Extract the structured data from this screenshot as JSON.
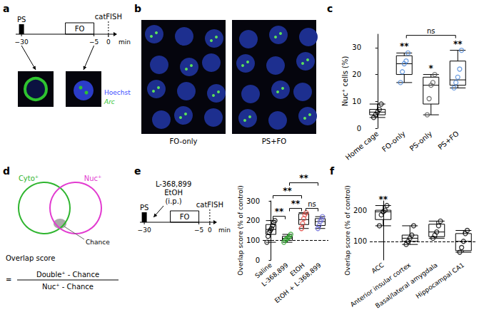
{
  "panels": {
    "a": {
      "label": "a",
      "timeline": {
        "ticks": [
          {
            "value": -30,
            "label": "−30"
          },
          {
            "value": -5,
            "label": "−5"
          },
          0
        ],
        "unit": "min",
        "marker": {
          "t": 0,
          "text": "catFISH"
        },
        "stimulus": {
          "t": -30,
          "text": "PS"
        },
        "session": {
          "t": -5,
          "text": "FO"
        }
      },
      "stains": [
        {
          "text": "Hoechst",
          "color": "#3b4bff"
        },
        {
          "text": "Arc",
          "color": "#2fc42f"
        }
      ]
    },
    "b": {
      "label": "b",
      "captions": [
        "FO-only",
        "PS+FO"
      ]
    },
    "d": {
      "label": "d",
      "sets": [
        {
          "text": "Cyto⁺",
          "color": "#2fb52f"
        },
        {
          "text": "Nuc⁺",
          "color": "#e23bd0"
        }
      ],
      "intersection": "Chance",
      "formula": {
        "lhs": "Overlap score",
        "equals": "=",
        "numerator": "Double⁺ - Chance",
        "denominator": "Nuc⁺ - Chance"
      }
    }
  },
  "chart_data": [
    {
      "panel": "c",
      "type": "boxplot",
      "ylabel": "Nuc⁺ cells (%)",
      "categories": [
        "Home cage",
        "FO-only",
        "PS-only",
        "PS+FO"
      ],
      "boxes": [
        [
          4,
          5,
          6,
          7,
          9
        ],
        [
          17,
          20,
          24,
          27,
          28
        ],
        [
          5,
          9,
          16,
          19,
          20
        ],
        [
          15,
          16,
          18,
          25,
          29
        ]
      ],
      "points": [
        [
          4,
          5,
          6,
          7,
          9
        ],
        [
          17,
          21,
          24,
          25,
          28
        ],
        [
          5,
          11,
          16,
          17,
          20
        ],
        [
          15,
          17,
          19,
          22,
          29
        ]
      ],
      "colors": [
        "#000000",
        "#4a86d8",
        "#555555",
        "#4a86d8"
      ],
      "ylim": [
        0,
        35
      ],
      "yticks": [
        0,
        10,
        20,
        30
      ],
      "grid": false,
      "annotations": [
        {
          "category": "FO-only",
          "text": "**"
        },
        {
          "category": "PS-only",
          "text": "*"
        },
        {
          "category": "PS+FO",
          "text": "**"
        }
      ],
      "comparisons": [
        {
          "pair": [
            "FO-only",
            "PS+FO"
          ],
          "text": "ns"
        }
      ]
    },
    {
      "panel": "e",
      "type": "boxplot",
      "ylabel": "Overlap score (% of control)",
      "timeline": {
        "ticks": [
          {
            "value": -30,
            "label": "−30"
          },
          {
            "value": -5,
            "label": "−5"
          },
          0
        ],
        "unit": "min",
        "marker": {
          "t": 0,
          "text": "catFISH"
        },
        "stimulus": {
          "t": -30,
          "text": "PS"
        },
        "session": {
          "t": -5,
          "text": "FO"
        },
        "injection": [
          "L-368,899",
          "EtOH",
          "(i.p.)"
        ]
      },
      "categories": [
        "Saline",
        "L-368,899",
        "EtOH",
        "EtOH + L-368,899"
      ],
      "boxes": [
        [
          90,
          130,
          155,
          180,
          200
        ],
        [
          90,
          100,
          110,
          120,
          130
        ],
        [
          160,
          180,
          205,
          235,
          240
        ],
        [
          160,
          175,
          195,
          210,
          220
        ]
      ],
      "points": [
        [
          90,
          120,
          140,
          150,
          160,
          175,
          190,
          200
        ],
        [
          90,
          100,
          105,
          110,
          115,
          120,
          130
        ],
        [
          160,
          185,
          210,
          230,
          240
        ],
        [
          160,
          175,
          195,
          205,
          220
        ]
      ],
      "colors": [
        "#000000",
        "#2ca02c",
        "#e0403a",
        "#6a6ad8"
      ],
      "ylim": [
        0,
        300
      ],
      "yticks": [
        0,
        100,
        200,
        300
      ],
      "grid": false,
      "reference": {
        "value": 100,
        "line_style": "dashed"
      },
      "comparisons": [
        {
          "pair": [
            "Saline",
            "L-368,899"
          ],
          "text": "**"
        },
        {
          "pair": [
            "L-368,899",
            "EtOH"
          ],
          "text": "**"
        },
        {
          "pair": [
            "EtOH",
            "EtOH + L-368,899"
          ],
          "text": "ns"
        },
        {
          "pair": [
            "Saline",
            "EtOH"
          ],
          "text": "**"
        },
        {
          "pair": [
            "L-368,899",
            "EtOH + L-368,899"
          ],
          "text": "**"
        }
      ]
    },
    {
      "panel": "f",
      "type": "boxplot",
      "ylabel": "Overlap score (% of control)",
      "categories": [
        "ACC",
        "Anterior insular cortex",
        "Basal/lateral amygdala",
        "Hippocampal CA1"
      ],
      "boxes": [
        [
          150,
          170,
          195,
          200,
          215
        ],
        [
          90,
          100,
          110,
          120,
          150
        ],
        [
          110,
          115,
          130,
          155,
          165
        ],
        [
          65,
          70,
          100,
          125,
          135
        ]
      ],
      "points": [
        [
          150,
          185,
          195,
          200,
          215
        ],
        [
          90,
          100,
          110,
          120,
          150
        ],
        [
          110,
          120,
          130,
          150,
          165
        ],
        [
          65,
          80,
          100,
          125,
          135
        ]
      ],
      "colors": [
        "#000000",
        "#000000",
        "#000000",
        "#000000"
      ],
      "ylim": [
        40,
        230
      ],
      "yticks": [
        100,
        200
      ],
      "grid": false,
      "reference": {
        "value": 100,
        "line_style": "dashed"
      },
      "annotations": [
        {
          "category": "ACC",
          "text": "**"
        }
      ]
    }
  ]
}
